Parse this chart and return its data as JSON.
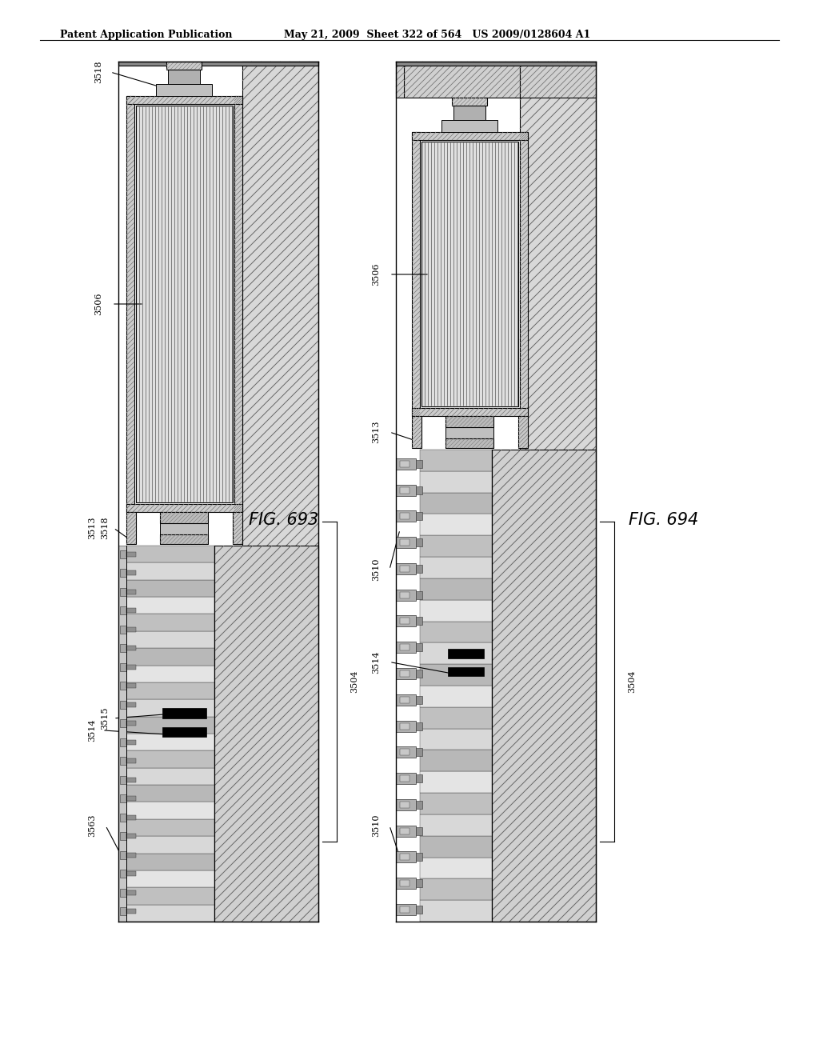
{
  "title_left": "Patent Application Publication",
  "title_right": "May 21, 2009  Sheet 322 of 564   US 2009/0128604 A1",
  "fig_label_left": "FIG. 693",
  "fig_label_right": "FIG. 694",
  "background_color": "#ffffff",
  "line_color": "#000000"
}
